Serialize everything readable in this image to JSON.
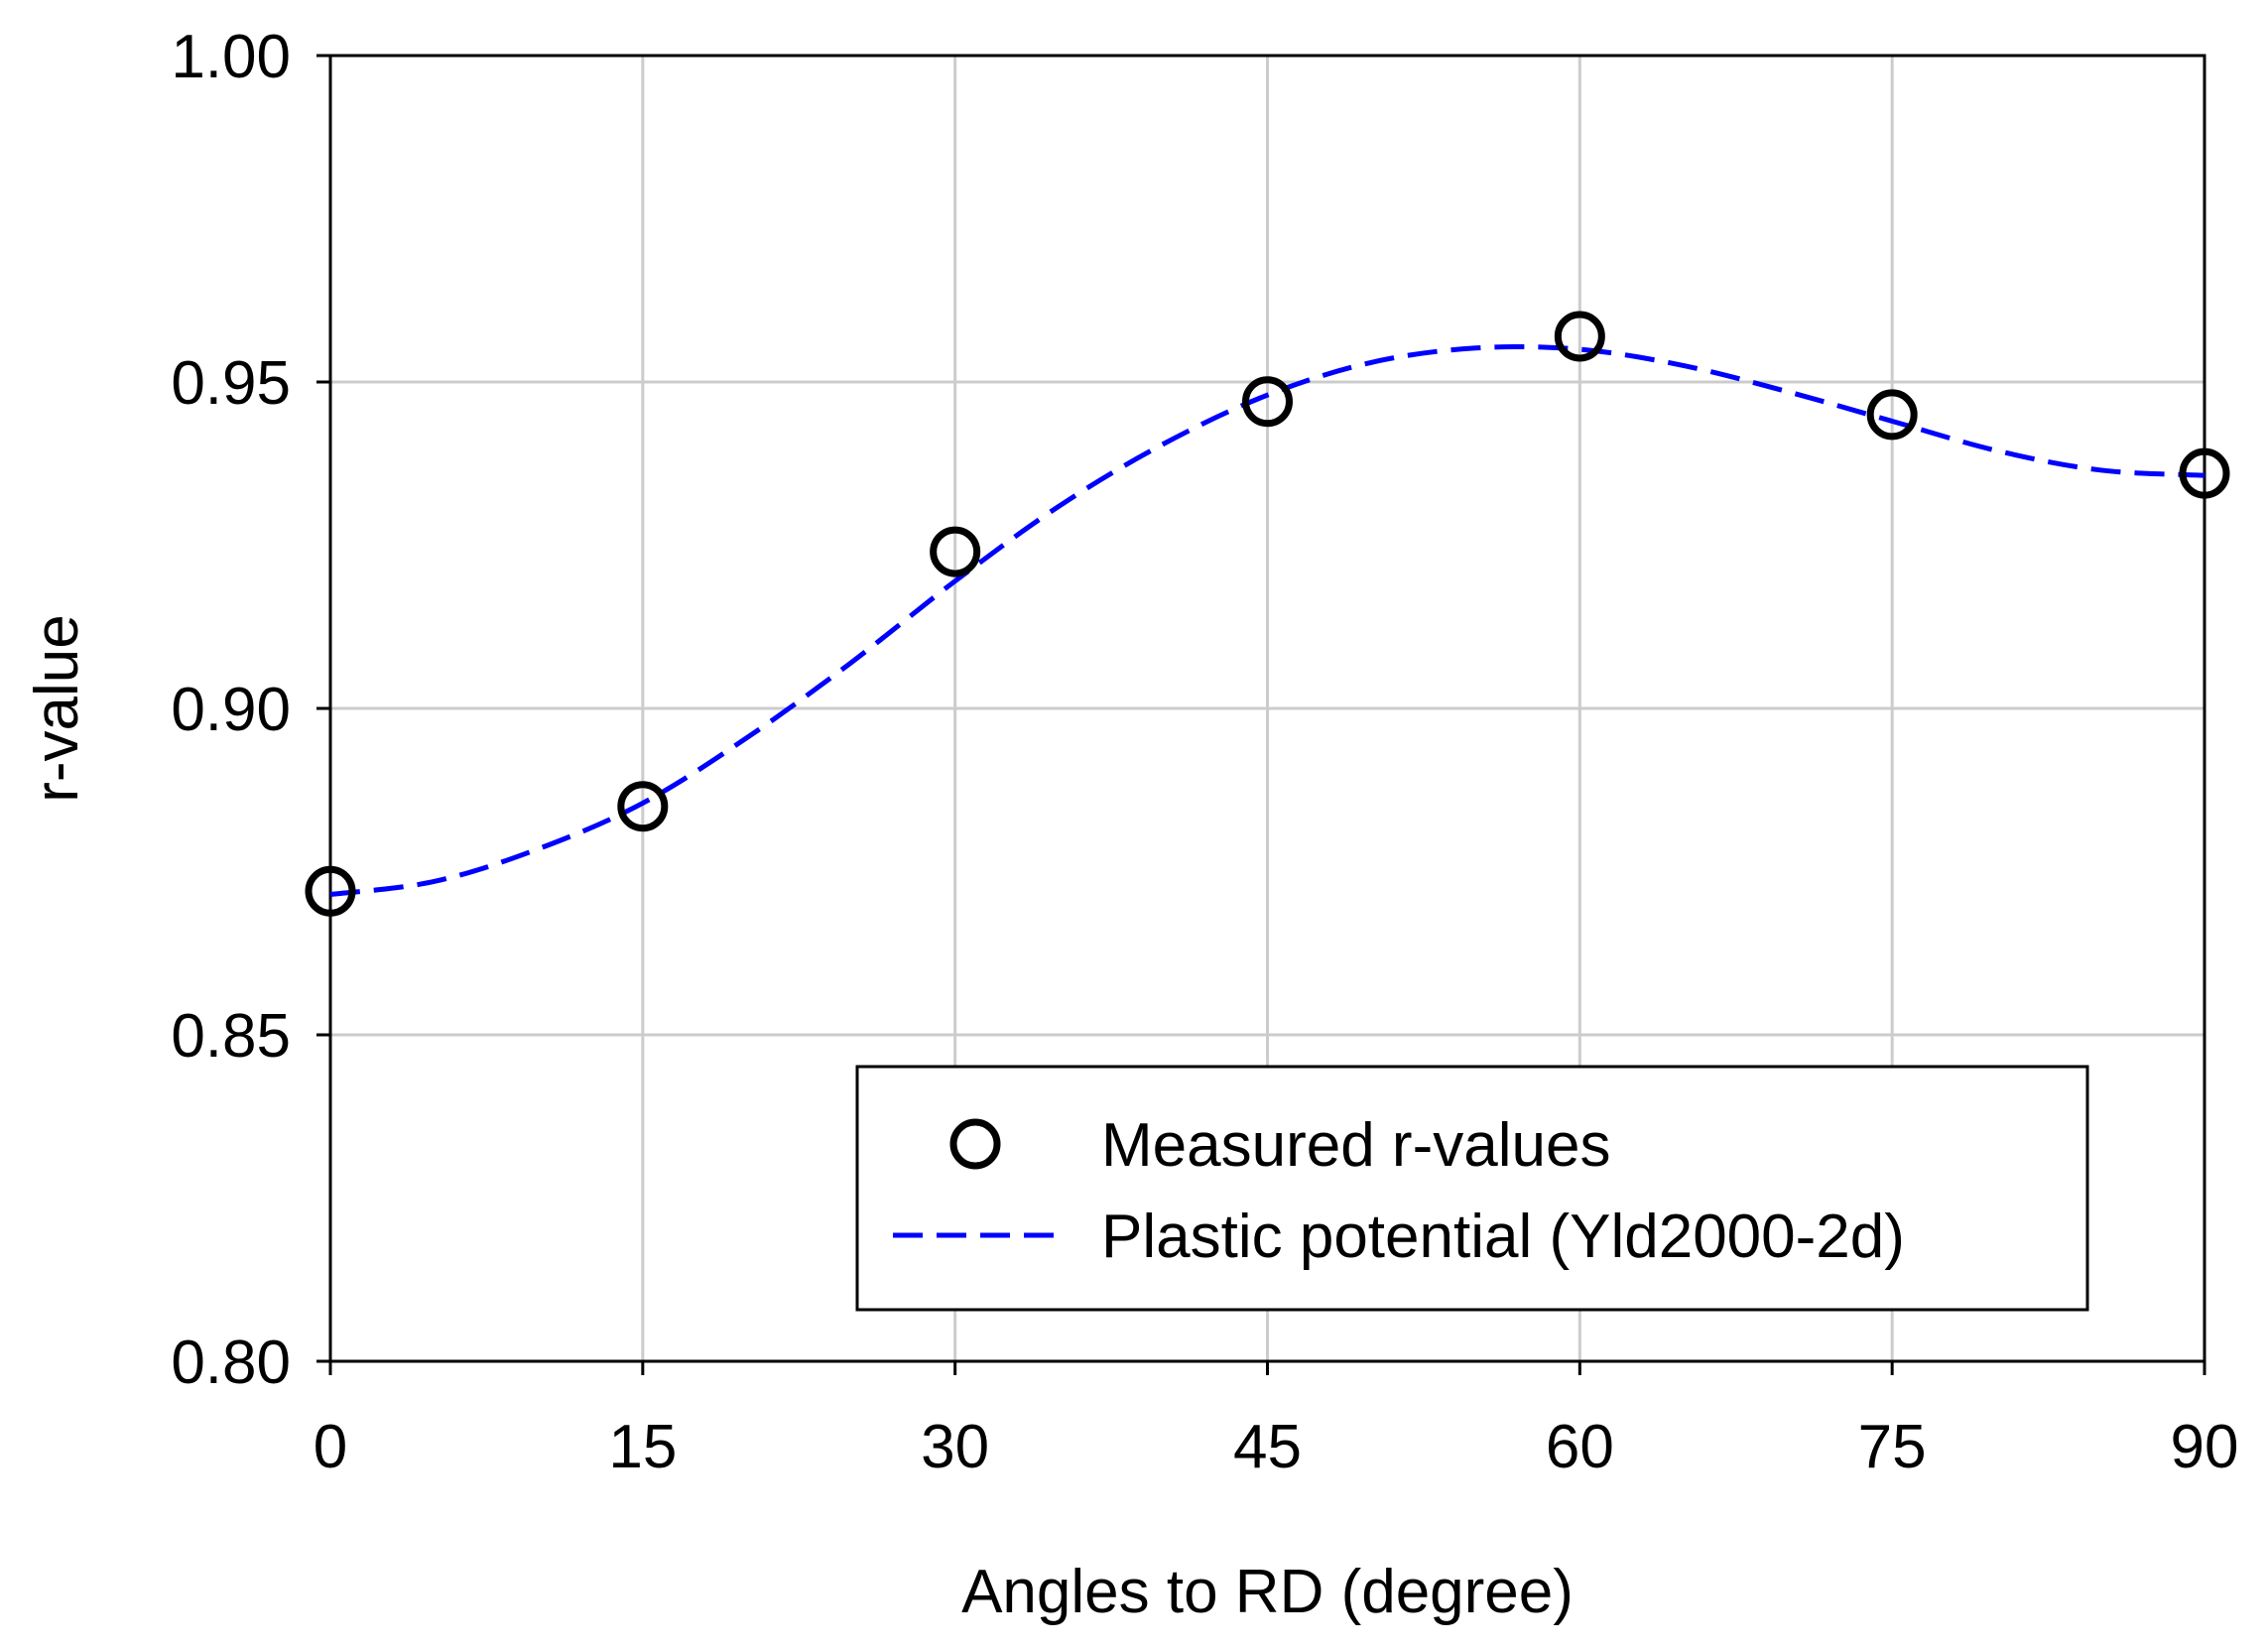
{
  "chart_data": {
    "type": "scatter",
    "title": "",
    "xlabel": "Angles to RD (degree)",
    "ylabel": "r-value",
    "xlim": [
      0,
      90
    ],
    "ylim": [
      0.8,
      1.0
    ],
    "xticks": [
      0,
      15,
      30,
      45,
      60,
      75,
      90
    ],
    "xtick_labels": [
      "0",
      "15",
      "30",
      "45",
      "60",
      "75",
      "90"
    ],
    "yticks": [
      0.8,
      0.85,
      0.9,
      0.95,
      1.0
    ],
    "ytick_labels": [
      "0.80",
      "0.85",
      "0.90",
      "0.95",
      "1.00"
    ],
    "grid": true,
    "legend_position": "bottom-right",
    "series": [
      {
        "name": "Measured r-values",
        "kind": "markers",
        "marker": "open-circle",
        "color": "#000000",
        "x": [
          0,
          15,
          30,
          45,
          60,
          75,
          90
        ],
        "y": [
          0.872,
          0.885,
          0.924,
          0.947,
          0.957,
          0.945,
          0.936
        ]
      },
      {
        "name": "Plastic potential (Yld2000-2d)",
        "kind": "line",
        "style": "dashed",
        "color": "#0000ff",
        "x": [
          0,
          5,
          10,
          15,
          20,
          25,
          30,
          35,
          40,
          45,
          50,
          55,
          60,
          65,
          70,
          75,
          80,
          85,
          90
        ],
        "y": [
          0.8715,
          0.8735,
          0.8785,
          0.8855,
          0.8955,
          0.907,
          0.9195,
          0.931,
          0.9405,
          0.948,
          0.953,
          0.9552,
          0.955,
          0.9525,
          0.9485,
          0.944,
          0.9395,
          0.9365,
          0.9357
        ]
      }
    ]
  }
}
